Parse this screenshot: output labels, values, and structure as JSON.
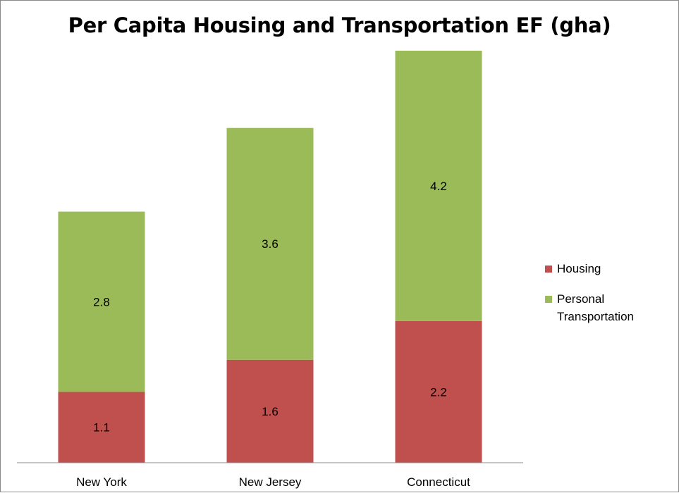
{
  "chart_data": {
    "type": "bar",
    "stacked": true,
    "title": "Per Capita Housing and Transportation EF (gha)",
    "xlabel": "",
    "ylabel": "",
    "ylim": [
      0,
      6.4
    ],
    "grid": false,
    "legend_position": "right",
    "categories": [
      "New York",
      "New Jersey",
      "Connecticut"
    ],
    "series": [
      {
        "name": "Housing",
        "values": [
          1.1,
          1.6,
          2.2
        ],
        "color": "#c0504d"
      },
      {
        "name": "Personal Transportation",
        "values": [
          2.8,
          3.6,
          4.2
        ],
        "color": "#9bbb59"
      }
    ],
    "data_labels": [
      [
        "1.1",
        "1.6",
        "2.2"
      ],
      [
        "2.8",
        "3.6",
        "4.2"
      ]
    ]
  }
}
